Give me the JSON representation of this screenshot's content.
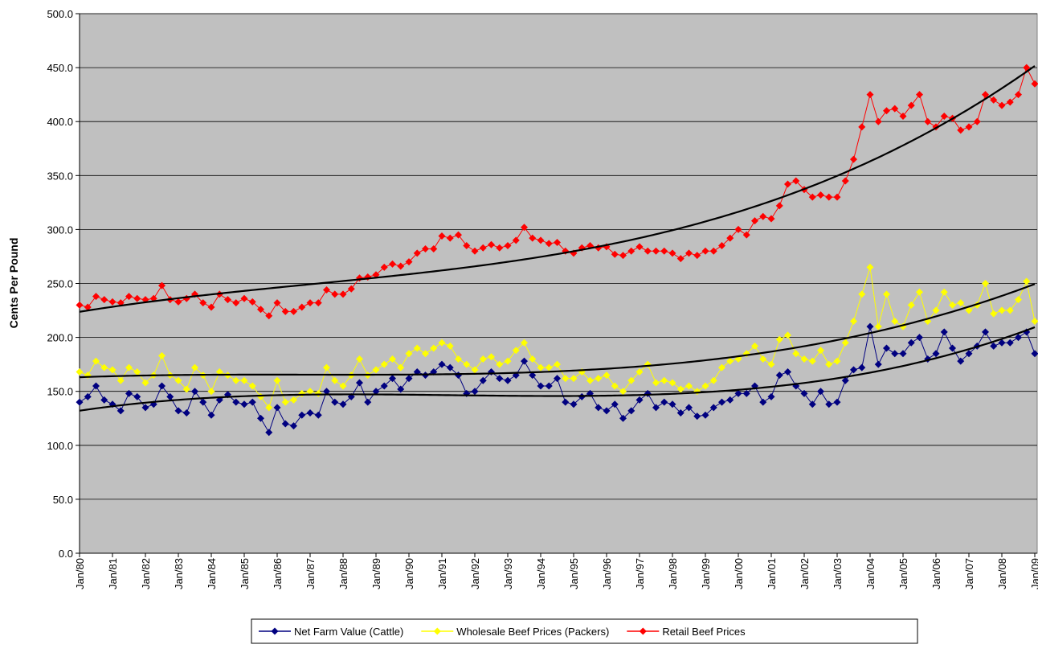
{
  "chart_data": {
    "type": "line",
    "y_label": "Cents Per Pound",
    "ylim": [
      0,
      500
    ],
    "yticks": [
      {
        "value": 0,
        "label": "0.0"
      },
      {
        "value": 50,
        "label": "50.0"
      },
      {
        "value": 100,
        "label": "100.0"
      },
      {
        "value": 150,
        "label": "150.0"
      },
      {
        "value": 200,
        "label": "200.0"
      },
      {
        "value": 250,
        "label": "250.0"
      },
      {
        "value": 300,
        "label": "300.0"
      },
      {
        "value": 350,
        "label": "350.0"
      },
      {
        "value": 400,
        "label": "400.0"
      },
      {
        "value": 450,
        "label": "450.0"
      },
      {
        "value": 500,
        "label": "500.0"
      }
    ],
    "grid": true,
    "plot_background": "#c0c0c0",
    "legend": "bottom",
    "categories": [
      "Jan/80",
      null,
      null,
      null,
      "Jan/81",
      null,
      null,
      null,
      "Jan/82",
      null,
      null,
      null,
      "Jan/83",
      null,
      null,
      null,
      "Jan/84",
      null,
      null,
      null,
      "Jan/85",
      null,
      null,
      null,
      "Jan/86",
      null,
      null,
      null,
      "Jan/87",
      null,
      null,
      null,
      "Jan/88",
      null,
      null,
      null,
      "Jan/89",
      null,
      null,
      null,
      "Jan/90",
      null,
      null,
      null,
      "Jan/91",
      null,
      null,
      null,
      "Jan/92",
      null,
      null,
      null,
      "Jan/93",
      null,
      null,
      null,
      "Jan/94",
      null,
      null,
      null,
      "Jan/95",
      null,
      null,
      null,
      "Jan/96",
      null,
      null,
      null,
      "Jan/97",
      null,
      null,
      null,
      "Jan/98",
      null,
      null,
      null,
      "Jan/99",
      null,
      null,
      null,
      "Jan/00",
      null,
      null,
      null,
      "Jan/01",
      null,
      null,
      null,
      "Jan/02",
      null,
      null,
      null,
      "Jan/03",
      null,
      null,
      null,
      "Jan/04",
      null,
      null,
      null,
      "Jan/05",
      null,
      null,
      null,
      "Jan/06",
      null,
      null,
      null,
      "Jan/07",
      null,
      null,
      null,
      "Jan/08",
      null,
      null,
      null,
      "Jan/09"
    ],
    "series": [
      {
        "name": "Net Farm Value (Cattle)",
        "color": "#000080",
        "marker": "diamond",
        "trendline": {
          "type": "polynomial",
          "order": 3,
          "color": "#000000"
        },
        "values": [
          140,
          145,
          155,
          142,
          138,
          132,
          148,
          145,
          135,
          138,
          155,
          145,
          132,
          130,
          150,
          140,
          128,
          142,
          147,
          140,
          138,
          140,
          125,
          112,
          135,
          120,
          118,
          128,
          130,
          128,
          150,
          140,
          138,
          145,
          158,
          140,
          150,
          155,
          162,
          152,
          162,
          168,
          165,
          168,
          175,
          172,
          165,
          148,
          150,
          160,
          168,
          162,
          160,
          165,
          178,
          165,
          155,
          155,
          162,
          140,
          138,
          145,
          148,
          135,
          132,
          138,
          125,
          132,
          142,
          148,
          135,
          140,
          138,
          130,
          135,
          127,
          128,
          135,
          140,
          142,
          148,
          148,
          155,
          140,
          145,
          165,
          168,
          155,
          148,
          138,
          150,
          138,
          140,
          160,
          170,
          172,
          210,
          175,
          190,
          185,
          185,
          195,
          200,
          180,
          185,
          205,
          190,
          178,
          185,
          192,
          205,
          192,
          195,
          195,
          200,
          205,
          185
        ]
      },
      {
        "name": "Wholesale Beef Prices (Packers)",
        "color": "#ffff00",
        "marker": "diamond",
        "trendline": {
          "type": "polynomial",
          "order": 3,
          "color": "#000000"
        },
        "values": [
          168,
          165,
          178,
          172,
          170,
          160,
          172,
          168,
          158,
          165,
          183,
          165,
          160,
          152,
          172,
          165,
          150,
          168,
          165,
          160,
          160,
          155,
          145,
          135,
          160,
          140,
          142,
          148,
          150,
          148,
          172,
          160,
          155,
          165,
          180,
          165,
          170,
          175,
          180,
          172,
          185,
          190,
          185,
          190,
          195,
          192,
          180,
          175,
          170,
          180,
          182,
          175,
          178,
          188,
          195,
          180,
          172,
          172,
          175,
          162,
          162,
          168,
          160,
          162,
          165,
          155,
          150,
          160,
          168,
          175,
          158,
          160,
          158,
          152,
          155,
          150,
          155,
          160,
          172,
          178,
          180,
          185,
          192,
          180,
          175,
          198,
          202,
          185,
          180,
          178,
          188,
          175,
          178,
          195,
          215,
          240,
          265,
          210,
          240,
          215,
          210,
          230,
          242,
          215,
          225,
          242,
          230,
          232,
          225,
          230,
          250,
          222,
          225,
          225,
          235,
          252,
          215
        ]
      },
      {
        "name": "Retail Beef Prices",
        "color": "#ff0000",
        "marker": "diamond",
        "trendline": {
          "type": "polynomial",
          "order": 3,
          "color": "#000000"
        },
        "values": [
          230,
          228,
          238,
          235,
          233,
          232,
          238,
          236,
          235,
          236,
          248,
          235,
          233,
          236,
          240,
          232,
          228,
          240,
          235,
          232,
          236,
          233,
          226,
          220,
          232,
          224,
          224,
          228,
          232,
          232,
          244,
          240,
          240,
          245,
          255,
          256,
          258,
          265,
          268,
          266,
          270,
          278,
          282,
          282,
          294,
          292,
          295,
          285,
          280,
          283,
          286,
          283,
          285,
          290,
          302,
          292,
          290,
          287,
          288,
          280,
          278,
          283,
          285,
          283,
          284,
          277,
          276,
          280,
          284,
          280,
          280,
          280,
          278,
          273,
          278,
          276,
          280,
          280,
          285,
          292,
          300,
          295,
          308,
          312,
          310,
          322,
          342,
          345,
          337,
          330,
          332,
          330,
          330,
          345,
          365,
          395,
          425,
          400,
          410,
          412,
          405,
          415,
          425,
          400,
          395,
          405,
          403,
          392,
          395,
          400,
          425,
          420,
          415,
          418,
          425,
          450,
          435
        ]
      }
    ]
  }
}
